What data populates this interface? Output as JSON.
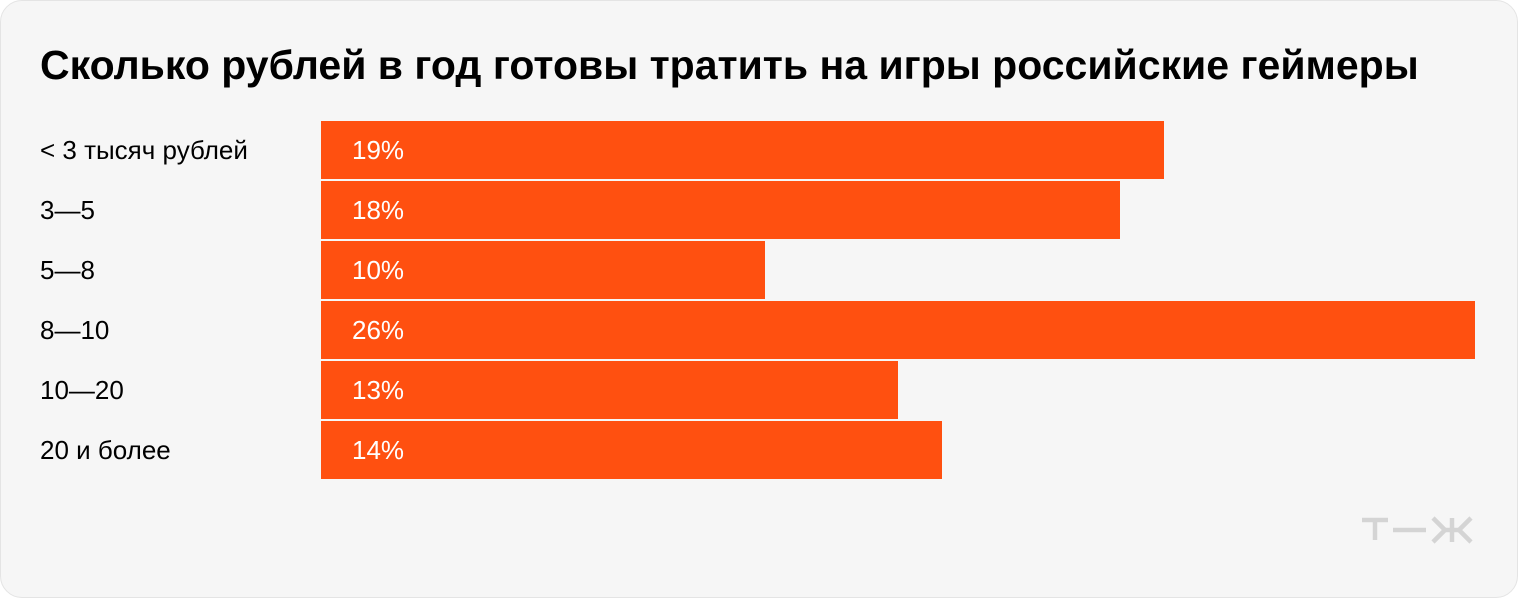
{
  "chart_data": {
    "type": "bar",
    "orientation": "horizontal",
    "title": "Сколько рублей в год готовы тратить на игры российские геймеры",
    "categories": [
      "< 3 тысяч рублей",
      "3—5",
      "5—8",
      "8—10",
      "10—20",
      "20 и более"
    ],
    "values": [
      19,
      18,
      10,
      26,
      13,
      14
    ],
    "value_labels": [
      "19%",
      "18%",
      "10%",
      "26%",
      "13%",
      "14%"
    ],
    "unit": "%",
    "xlim": [
      0,
      26
    ],
    "grid": false,
    "colors": {
      "bar": "#ff5010",
      "background": "#f6f6f6"
    }
  },
  "logo": {
    "text": "т—ж",
    "color": "#d4d4d4"
  }
}
